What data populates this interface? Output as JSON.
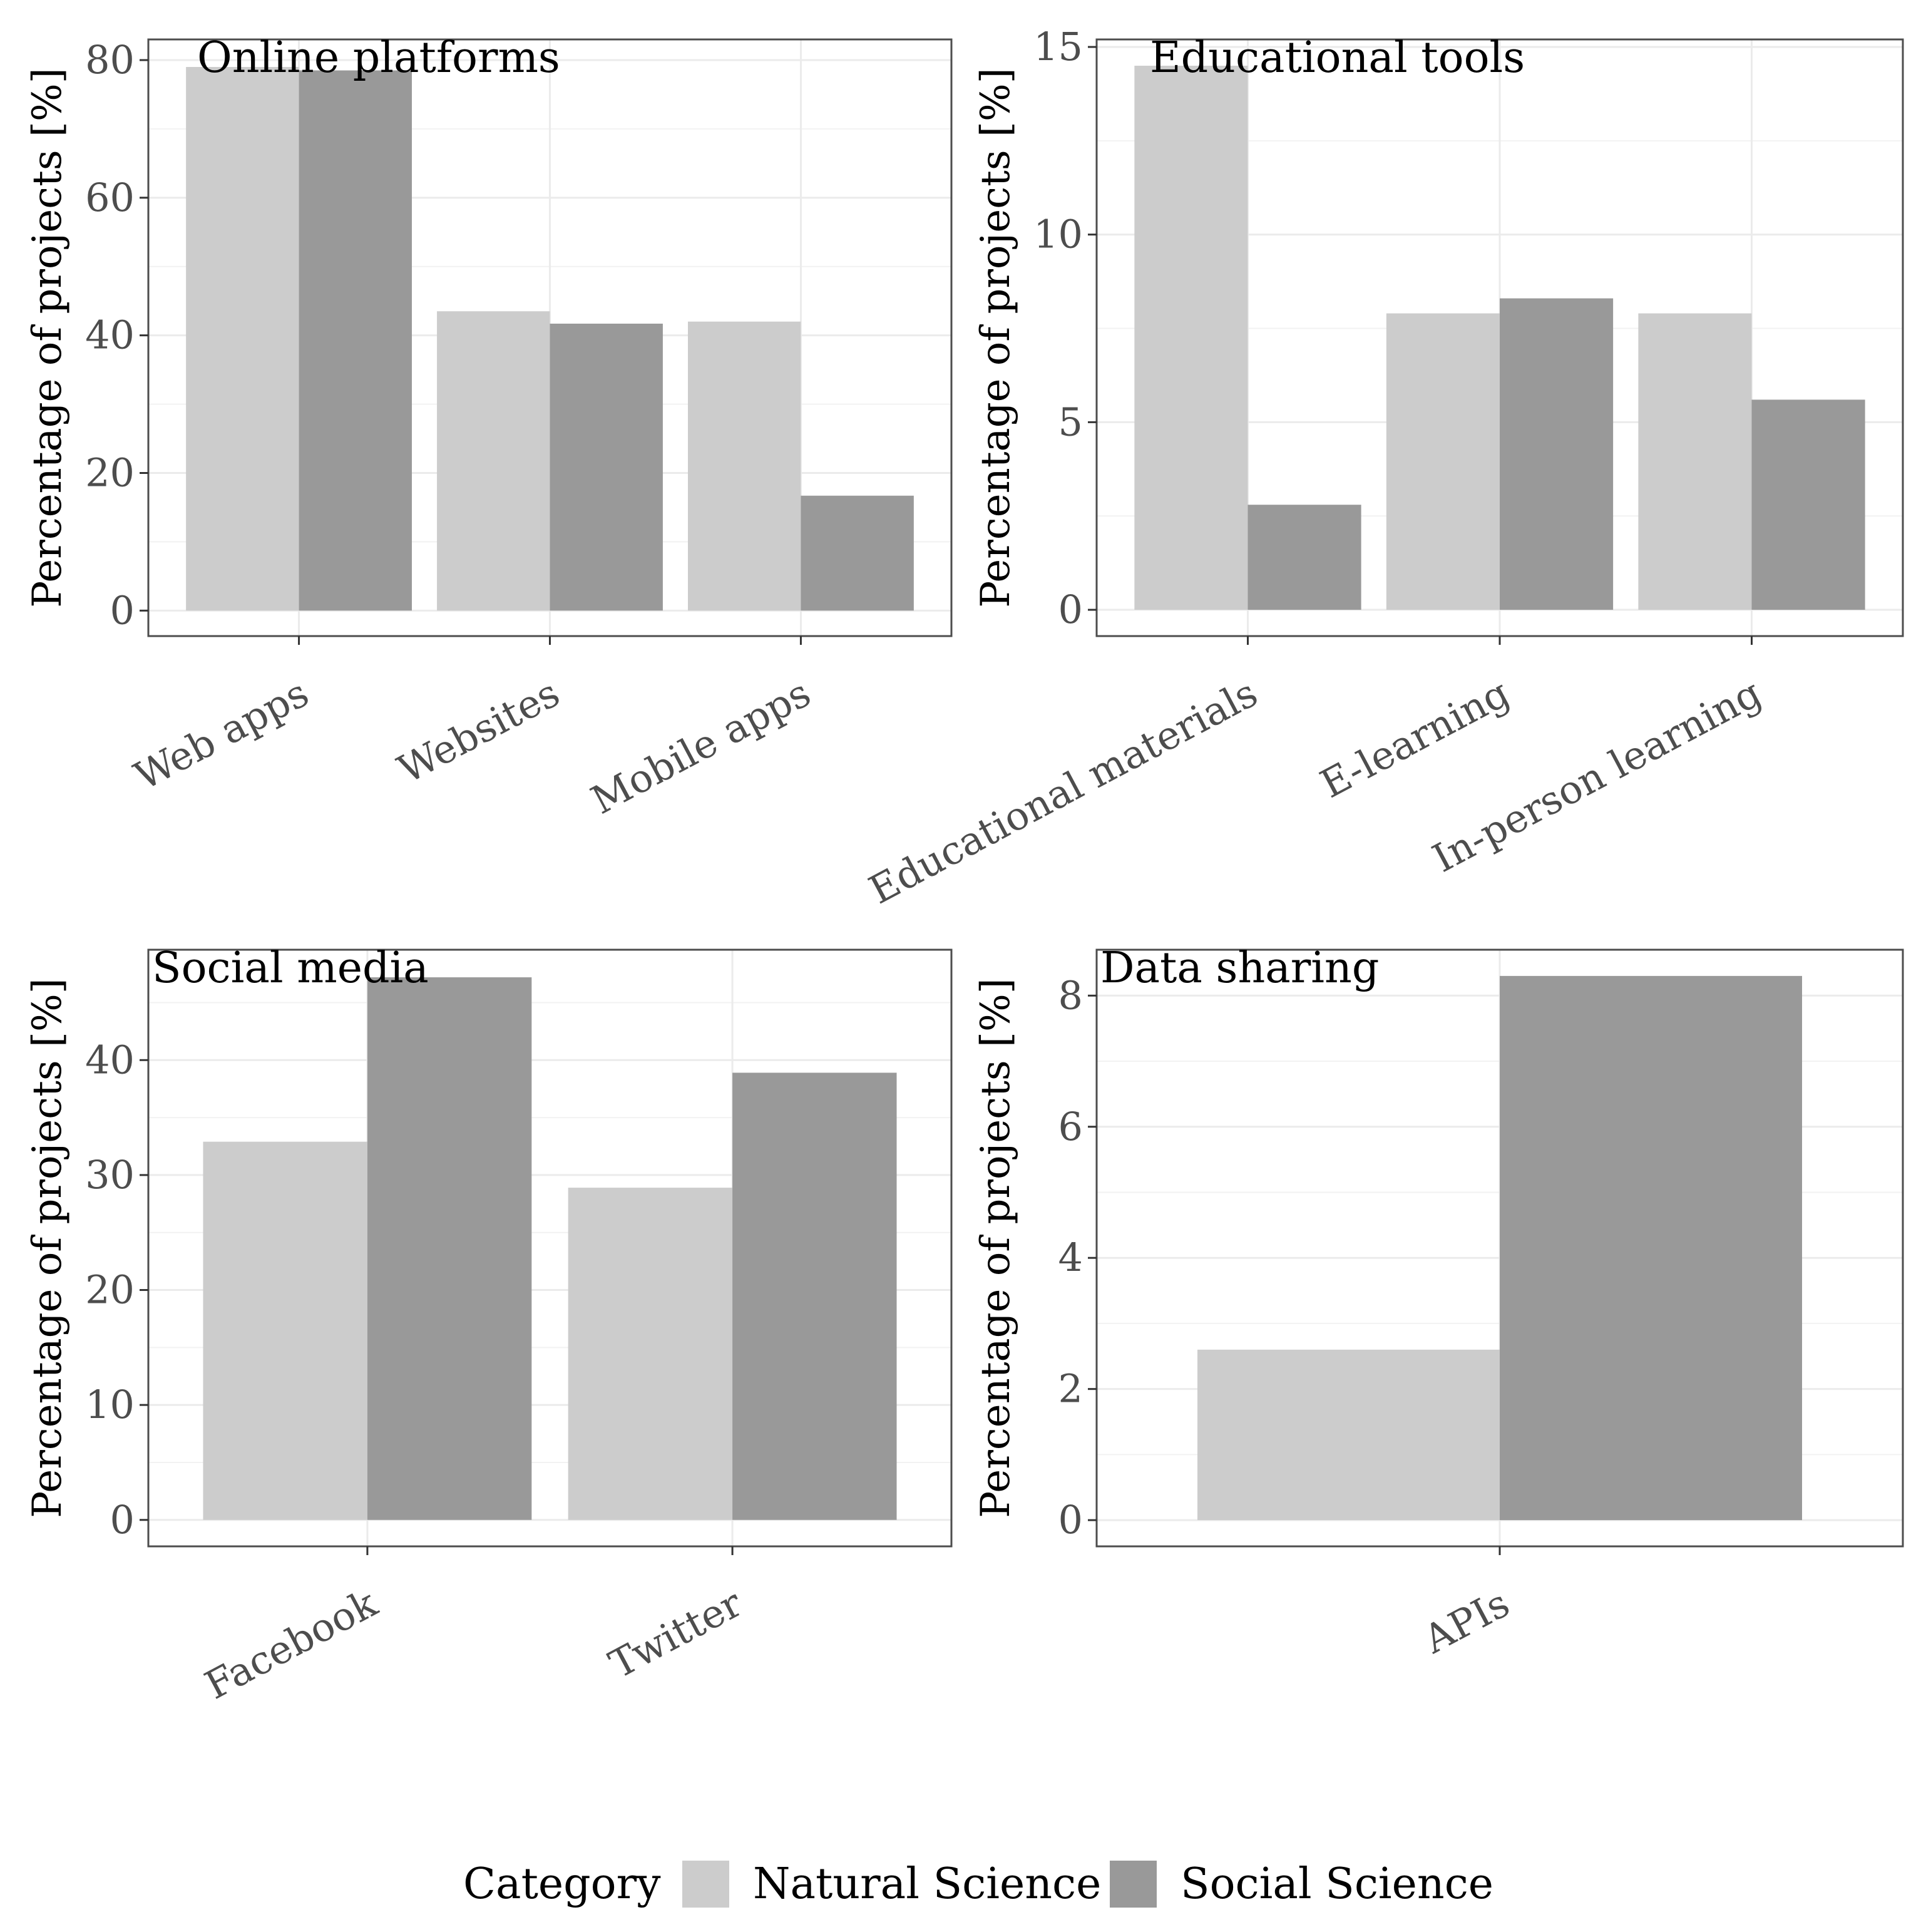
{
  "legend": {
    "title": "Category",
    "items": [
      {
        "name": "Natural Science",
        "color": "#cccccc"
      },
      {
        "name": "Social Science",
        "color": "#999999"
      }
    ]
  },
  "chart_data": [
    {
      "type": "bar",
      "title": "Online platforms",
      "ylabel": "Percentage of projects [%]",
      "xlabel": "",
      "categories": [
        "Web apps",
        "Websites",
        "Mobile apps"
      ],
      "series": [
        {
          "name": "Natural Science",
          "values": [
            79,
            43.5,
            42
          ]
        },
        {
          "name": "Social Science",
          "values": [
            78.5,
            41.7,
            16.7
          ]
        }
      ],
      "ylim": [
        -3.7,
        83
      ],
      "yticks": [
        0,
        20,
        40,
        60,
        80
      ],
      "grid": true
    },
    {
      "type": "bar",
      "title": "Educational tools",
      "ylabel": "Percentage of projects [%]",
      "xlabel": "",
      "categories": [
        "Educational materials",
        "E-learning",
        "In-person learning"
      ],
      "series": [
        {
          "name": "Natural Science",
          "values": [
            14.5,
            7.9,
            7.9
          ]
        },
        {
          "name": "Social Science",
          "values": [
            2.8,
            8.3,
            5.6
          ]
        }
      ],
      "ylim": [
        -0.7,
        15.2
      ],
      "yticks": [
        0,
        5,
        10,
        15
      ],
      "grid": true
    },
    {
      "type": "bar",
      "title": "Social media",
      "ylabel": "Percentage of projects [%]",
      "xlabel": "",
      "categories": [
        "Facebook",
        "Twitter"
      ],
      "series": [
        {
          "name": "Natural Science",
          "values": [
            32.9,
            28.9
          ]
        },
        {
          "name": "Social Science",
          "values": [
            47.2,
            38.9
          ]
        }
      ],
      "ylim": [
        -2.3,
        49.6
      ],
      "yticks": [
        0,
        10,
        20,
        30,
        40
      ],
      "grid": true
    },
    {
      "type": "bar",
      "title": "Data sharing",
      "ylabel": "Percentage of projects [%]",
      "xlabel": "",
      "categories": [
        "APIs"
      ],
      "series": [
        {
          "name": "Natural Science",
          "values": [
            2.6
          ]
        },
        {
          "name": "Social Science",
          "values": [
            8.3
          ]
        }
      ],
      "ylim": [
        -0.4,
        8.7
      ],
      "yticks": [
        0,
        2,
        4,
        6,
        8
      ],
      "grid": true
    }
  ]
}
